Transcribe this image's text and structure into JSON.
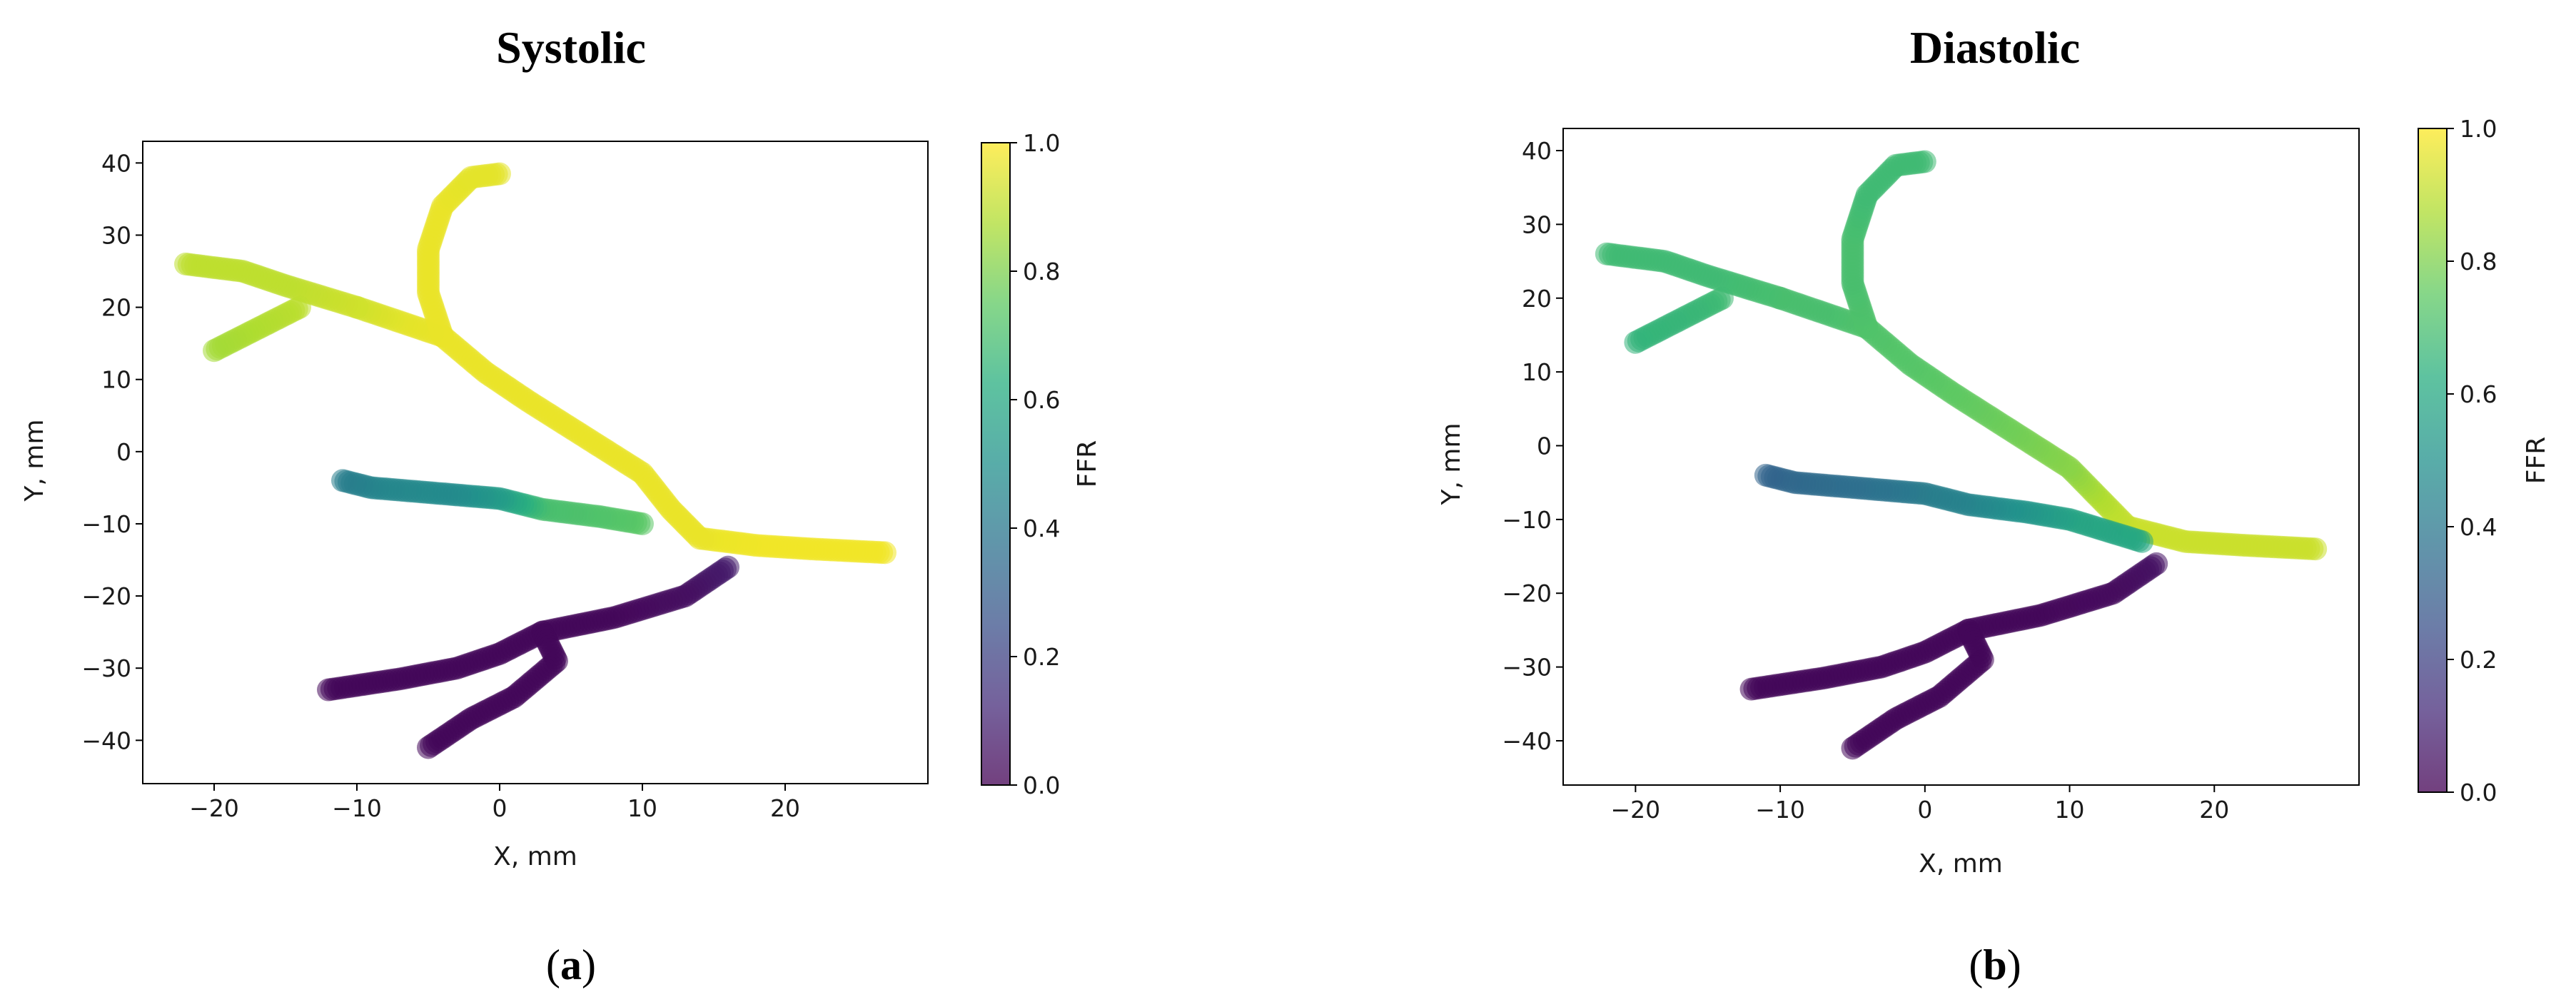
{
  "chart_data": [
    {
      "type": "scatter",
      "title": "Systolic",
      "subfig_label": "a",
      "xlabel": "X, mm",
      "ylabel": "Y, mm",
      "xlim": [
        -25,
        30
      ],
      "ylim": [
        -46,
        43
      ],
      "xticks": [
        -20,
        -10,
        0,
        10,
        20
      ],
      "yticks": [
        -40,
        -30,
        -20,
        -10,
        0,
        10,
        20,
        30,
        40
      ],
      "xtick_labels": [
        "−20",
        "−10",
        "0",
        "10",
        "20"
      ],
      "ytick_labels": [
        "−40",
        "−30",
        "−20",
        "−10",
        "0",
        "10",
        "20",
        "30",
        "40"
      ],
      "colorbar": {
        "label": "FFR",
        "colormap": "viridis",
        "range": [
          0.0,
          1.0
        ],
        "ticks": [
          0.0,
          0.2,
          0.4,
          0.6,
          0.8,
          1.0
        ],
        "tick_labels": [
          "0.0",
          "0.2",
          "0.4",
          "0.6",
          "0.8",
          "1.0"
        ]
      },
      "series": [
        {
          "points": [
            [
              27,
              -14,
              0.98
            ],
            [
              22,
              -13.5,
              0.98
            ],
            [
              18,
              -13,
              0.98
            ],
            [
              14,
              -12,
              0.97
            ],
            [
              12,
              -8,
              0.97
            ],
            [
              10,
              -3,
              0.97
            ],
            [
              6,
              2,
              0.97
            ],
            [
              2,
              7,
              0.97
            ],
            [
              -1,
              11,
              0.97
            ],
            [
              -4,
              16,
              0.97
            ],
            [
              -7,
              18,
              0.96
            ],
            [
              -10,
              20,
              0.93
            ]
          ]
        },
        {
          "points": [
            [
              -4,
              16,
              0.97
            ],
            [
              -5,
              22,
              0.97
            ],
            [
              -5,
              28,
              0.97
            ],
            [
              -4,
              34,
              0.97
            ],
            [
              -2,
              38,
              0.96
            ],
            [
              0,
              38.5,
              0.96
            ]
          ]
        },
        {
          "points": [
            [
              -10,
              20,
              0.93
            ],
            [
              -15,
              23,
              0.9
            ],
            [
              -18,
              25,
              0.9
            ],
            [
              -22,
              26,
              0.9
            ]
          ]
        },
        {
          "points": [
            [
              -14,
              20,
              0.9
            ],
            [
              -17,
              17,
              0.88
            ],
            [
              -20,
              14,
              0.86
            ]
          ]
        },
        {
          "points": [
            [
              10,
              -10,
              0.74
            ],
            [
              7,
              -9,
              0.72
            ],
            [
              3,
              -8,
              0.7
            ],
            [
              0,
              -6.5,
              0.55
            ],
            [
              -3,
              -6,
              0.48
            ],
            [
              -6,
              -5.5,
              0.47
            ],
            [
              -9,
              -5,
              0.45
            ],
            [
              -11,
              -4,
              0.42
            ]
          ]
        },
        {
          "points": [
            [
              16,
              -16,
              0.08
            ],
            [
              13,
              -20,
              0.04
            ],
            [
              8,
              -23,
              0.02
            ],
            [
              3,
              -25,
              0.02
            ],
            [
              0,
              -28,
              0.02
            ],
            [
              -3,
              -30,
              0.02
            ],
            [
              -7,
              -31.5,
              0.02
            ],
            [
              -12,
              -33,
              0.02
            ]
          ]
        },
        {
          "points": [
            [
              3,
              -25,
              0.02
            ],
            [
              4,
              -29,
              0.02
            ],
            [
              1,
              -34,
              0.02
            ],
            [
              -2,
              -37,
              0.02
            ],
            [
              -5,
              -41,
              0.02
            ]
          ]
        }
      ]
    },
    {
      "type": "scatter",
      "title": "Diastolic",
      "subfig_label": "b",
      "xlabel": "X, mm",
      "ylabel": "Y, mm",
      "xlim": [
        -25,
        30
      ],
      "ylim": [
        -46,
        43
      ],
      "xticks": [
        -20,
        -10,
        0,
        10,
        20
      ],
      "yticks": [
        -40,
        -30,
        -20,
        -10,
        0,
        10,
        20,
        30,
        40
      ],
      "xtick_labels": [
        "−20",
        "−10",
        "0",
        "10",
        "20"
      ],
      "ytick_labels": [
        "−40",
        "−30",
        "−20",
        "−10",
        "0",
        "10",
        "20",
        "30",
        "40"
      ],
      "colorbar": {
        "label": "FFR",
        "colormap": "viridis",
        "range": [
          0.0,
          1.0
        ],
        "ticks": [
          0.0,
          0.2,
          0.4,
          0.6,
          0.8,
          1.0
        ],
        "tick_labels": [
          "0.0",
          "0.2",
          "0.4",
          "0.6",
          "0.8",
          "1.0"
        ]
      },
      "series": [
        {
          "points": [
            [
              27,
              -14,
              0.92
            ],
            [
              22,
              -13.5,
              0.92
            ],
            [
              18,
              -13,
              0.92
            ],
            [
              14,
              -11,
              0.92
            ],
            [
              12,
              -7,
              0.88
            ],
            [
              10,
              -3,
              0.82
            ],
            [
              6,
              2,
              0.78
            ],
            [
              2,
              7,
              0.75
            ],
            [
              -1,
              11,
              0.73
            ],
            [
              -4,
              16,
              0.72
            ],
            [
              -7,
              18,
              0.7
            ],
            [
              -10,
              20,
              0.7
            ]
          ]
        },
        {
          "points": [
            [
              -4,
              16,
              0.72
            ],
            [
              -5,
              22,
              0.7
            ],
            [
              -5,
              28,
              0.7
            ],
            [
              -4,
              34,
              0.68
            ],
            [
              -2,
              38,
              0.68
            ],
            [
              0,
              38.5,
              0.68
            ]
          ]
        },
        {
          "points": [
            [
              -10,
              20,
              0.7
            ],
            [
              -15,
              23,
              0.68
            ],
            [
              -18,
              25,
              0.68
            ],
            [
              -22,
              26,
              0.68
            ]
          ]
        },
        {
          "points": [
            [
              -14,
              20,
              0.68
            ],
            [
              -17,
              17,
              0.66
            ],
            [
              -20,
              14,
              0.65
            ]
          ]
        },
        {
          "points": [
            [
              15,
              -13,
              0.6
            ],
            [
              10,
              -10,
              0.58
            ],
            [
              7,
              -9,
              0.52
            ],
            [
              3,
              -8,
              0.45
            ],
            [
              0,
              -6.5,
              0.42
            ],
            [
              -3,
              -6,
              0.38
            ],
            [
              -6,
              -5.5,
              0.36
            ],
            [
              -9,
              -5,
              0.34
            ],
            [
              -11,
              -4,
              0.32
            ]
          ]
        },
        {
          "points": [
            [
              16,
              -16,
              0.05
            ],
            [
              13,
              -20,
              0.03
            ],
            [
              8,
              -23,
              0.02
            ],
            [
              3,
              -25,
              0.02
            ],
            [
              0,
              -28,
              0.02
            ],
            [
              -3,
              -30,
              0.02
            ],
            [
              -7,
              -31.5,
              0.02
            ],
            [
              -12,
              -33,
              0.02
            ]
          ]
        },
        {
          "points": [
            [
              3,
              -25,
              0.02
            ],
            [
              4,
              -29,
              0.02
            ],
            [
              1,
              -34,
              0.02
            ],
            [
              -2,
              -37,
              0.02
            ],
            [
              -5,
              -41,
              0.02
            ]
          ]
        }
      ]
    }
  ]
}
